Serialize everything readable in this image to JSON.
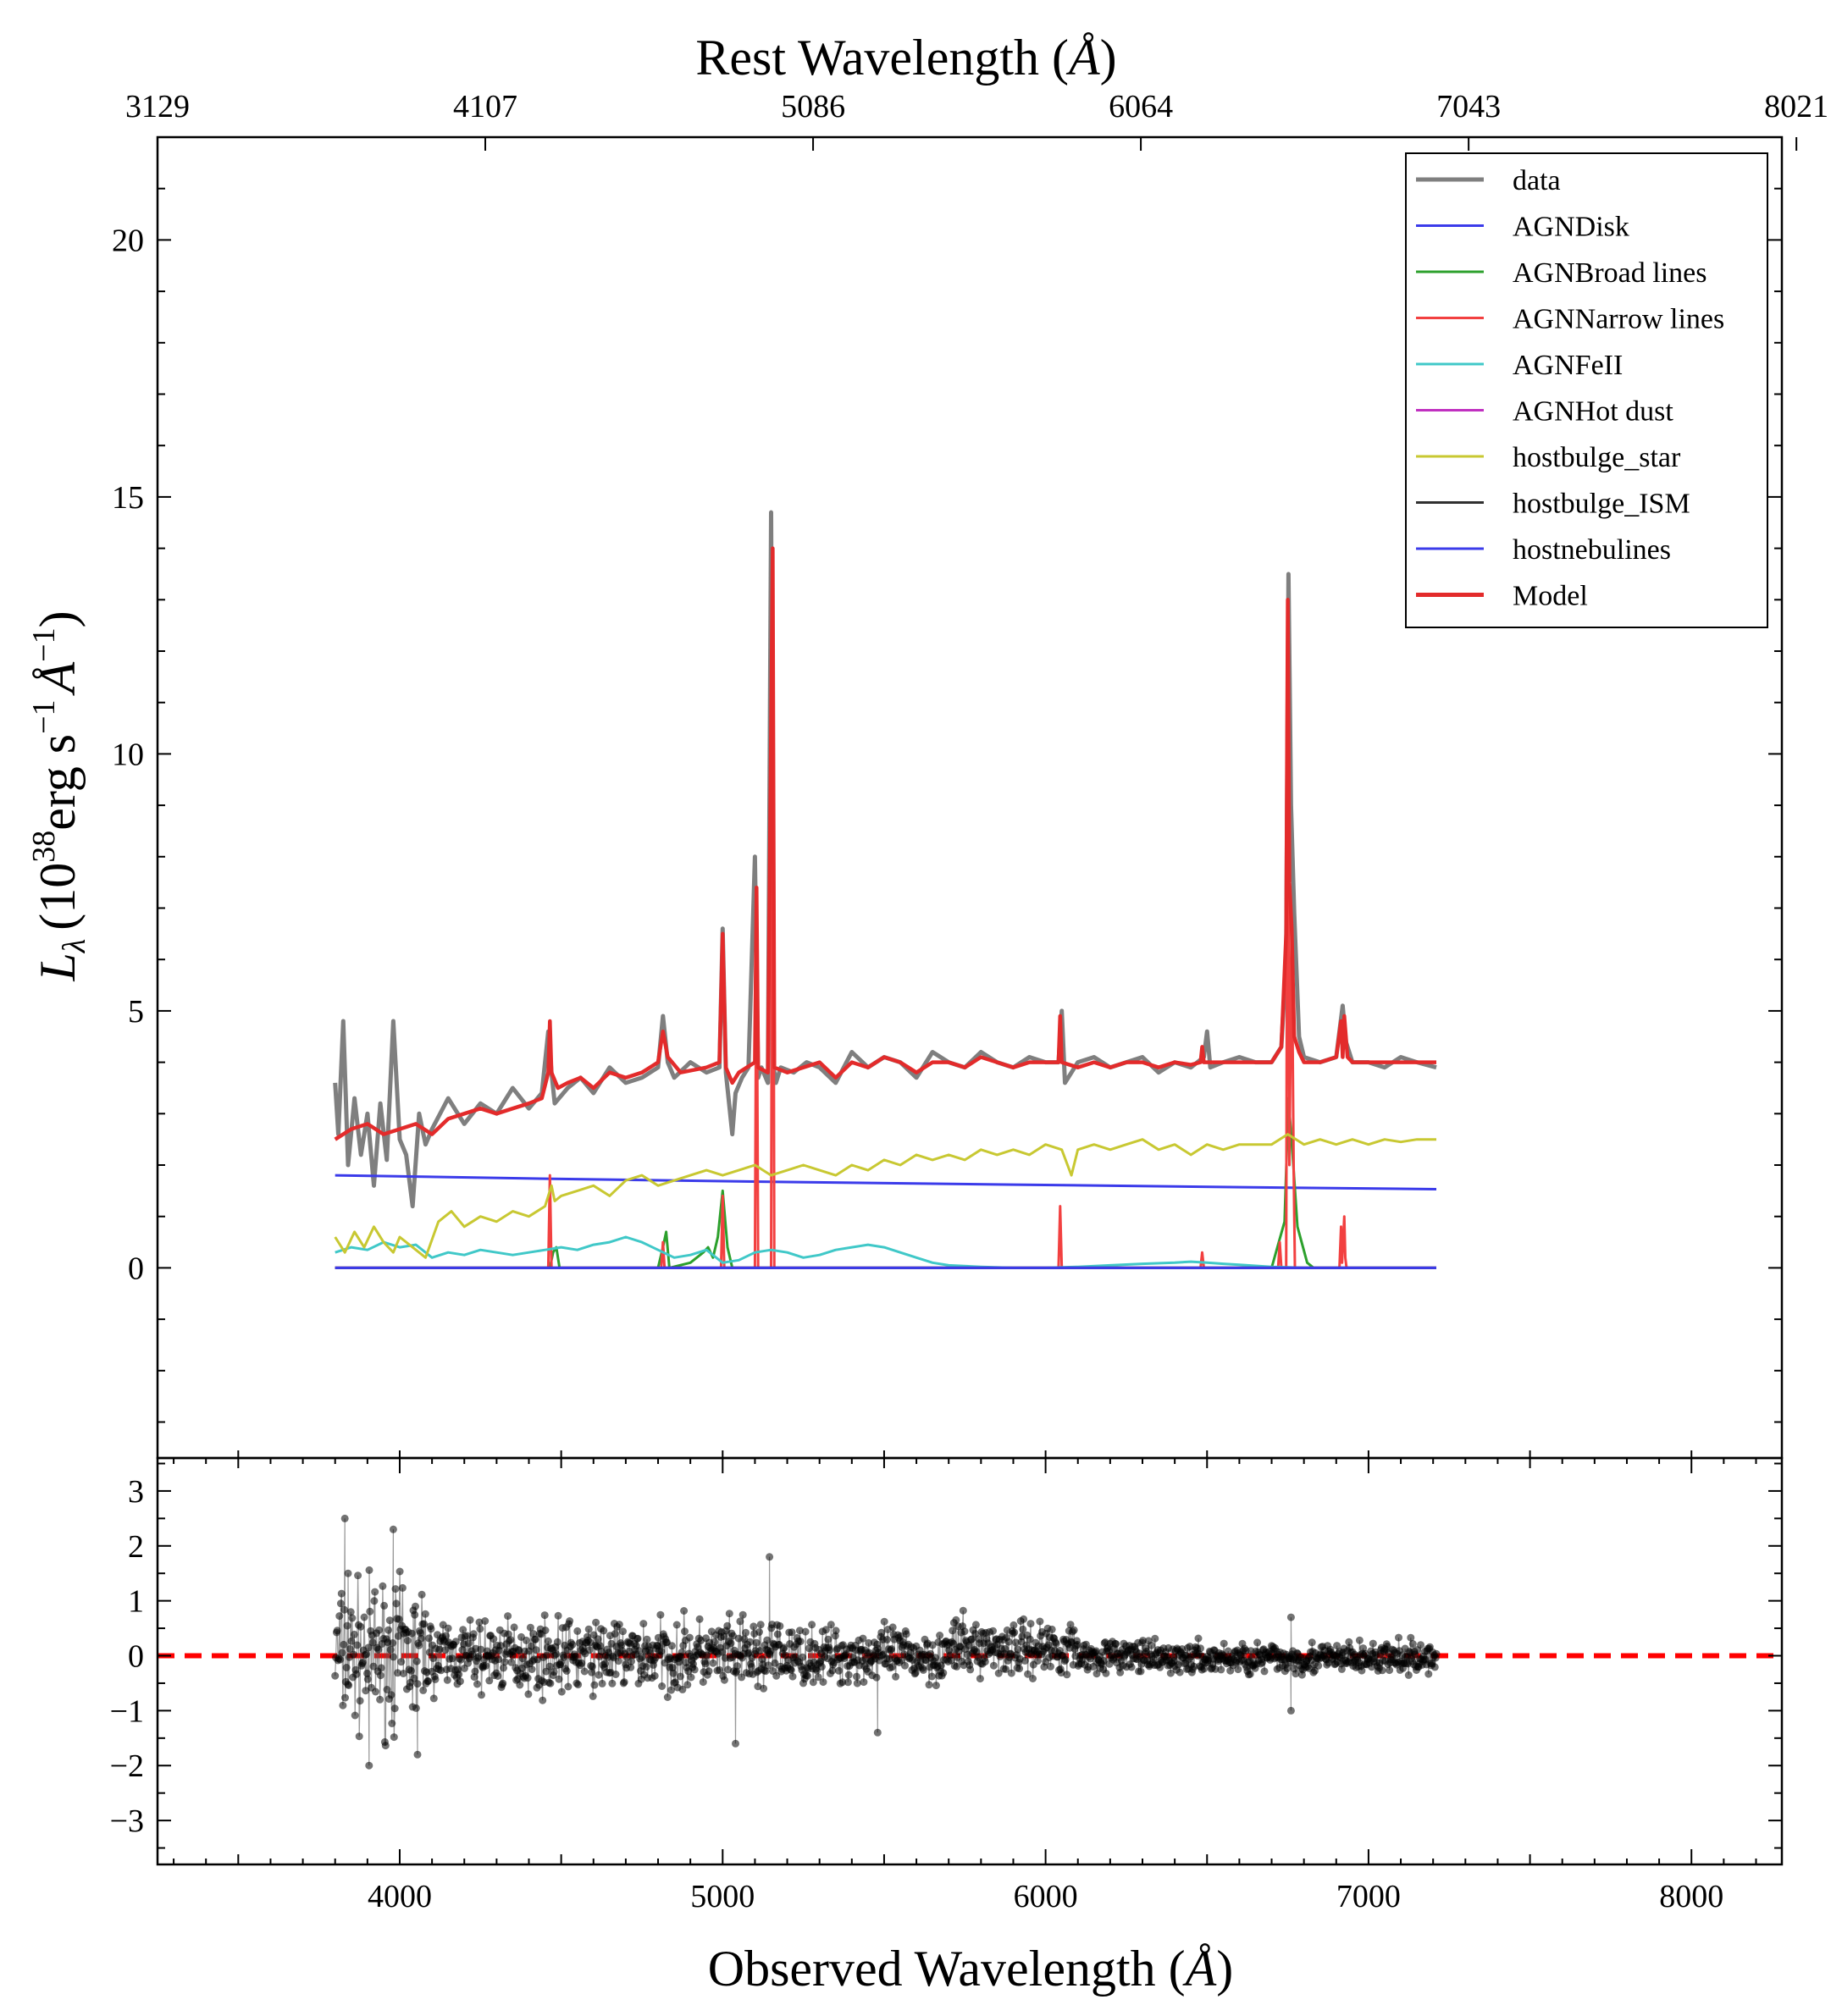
{
  "chart_data": [
    {
      "panel": "spectrum",
      "type": "line",
      "xlabel": "Observed Wavelength",
      "xlabel_unit": "Å",
      "top_xlabel": "Rest Wavelength",
      "top_xlabel_unit": "Å",
      "ylabel_symbol": "L",
      "ylabel_subscript": "λ",
      "ylabel_paren_open": "(10",
      "ylabel_exp1": "38",
      "ylabel_mid": "erg s",
      "ylabel_exp2": "−1",
      "ylabel_angstrom": "Å",
      "ylabel_exp3": "−1",
      "ylabel_paren_close": ")",
      "xlim": [
        3250,
        8280
      ],
      "ylim": [
        -3.7,
        22
      ],
      "yticks": [
        "0",
        "5",
        "10",
        "15",
        "20"
      ],
      "top_xticks": [
        {
          "obs": 3250,
          "label": "3129"
        },
        {
          "obs": 4265,
          "label": "4107"
        },
        {
          "obs": 5280,
          "label": "5086"
        },
        {
          "obs": 6295,
          "label": "6064"
        },
        {
          "obs": 7310,
          "label": "7043"
        },
        {
          "obs": 8325,
          "label": "8021"
        }
      ],
      "legend_position": "top-right",
      "series": [
        {
          "name": "data",
          "color": "#7f7f7f",
          "x": [
            3800,
            3810,
            3825,
            3840,
            3860,
            3880,
            3900,
            3920,
            3940,
            3960,
            3980,
            4000,
            4020,
            4040,
            4060,
            4080,
            4100,
            4150,
            4200,
            4250,
            4300,
            4350,
            4400,
            4440,
            4460,
            4470,
            4480,
            4520,
            4560,
            4600,
            4650,
            4700,
            4750,
            4800,
            4815,
            4830,
            4850,
            4900,
            4950,
            4990,
            5000,
            5010,
            5030,
            5040,
            5060,
            5080,
            5100,
            5110,
            5120,
            5140,
            5150,
            5158,
            5165,
            5180,
            5220,
            5260,
            5300,
            5350,
            5400,
            5450,
            5500,
            5550,
            5600,
            5650,
            5700,
            5750,
            5800,
            5850,
            5900,
            5950,
            6000,
            6040,
            6050,
            6060,
            6100,
            6150,
            6200,
            6250,
            6300,
            6350,
            6400,
            6450,
            6490,
            6500,
            6510,
            6550,
            6600,
            6650,
            6700,
            6730,
            6745,
            6752,
            6760,
            6770,
            6785,
            6800,
            6850,
            6900,
            6920,
            6930,
            6950,
            7000,
            7050,
            7100,
            7150,
            7210
          ],
          "y": [
            3.6,
            2.6,
            4.8,
            2.0,
            3.3,
            2.2,
            3.0,
            1.6,
            3.2,
            2.1,
            4.8,
            2.5,
            2.2,
            1.2,
            3.0,
            2.4,
            2.7,
            3.3,
            2.8,
            3.2,
            3.0,
            3.5,
            3.1,
            3.4,
            4.6,
            3.8,
            3.2,
            3.5,
            3.7,
            3.4,
            3.9,
            3.6,
            3.7,
            3.9,
            4.9,
            4.0,
            3.7,
            4.0,
            3.8,
            3.9,
            6.6,
            3.8,
            2.6,
            3.4,
            3.7,
            3.9,
            8.0,
            3.7,
            3.9,
            3.6,
            14.7,
            3.9,
            3.6,
            3.9,
            3.8,
            4.0,
            3.9,
            3.6,
            4.2,
            3.9,
            4.1,
            4.0,
            3.7,
            4.2,
            4.0,
            3.9,
            4.2,
            4.0,
            3.9,
            4.1,
            4.0,
            4.0,
            5.0,
            3.6,
            4.0,
            4.1,
            3.9,
            4.0,
            4.1,
            3.8,
            4.0,
            3.9,
            4.1,
            4.6,
            3.9,
            4.0,
            4.1,
            4.0,
            4.0,
            4.3,
            6.0,
            13.5,
            9.0,
            6.9,
            4.5,
            4.1,
            4.0,
            4.1,
            5.1,
            4.4,
            4.0,
            4.0,
            3.9,
            4.1,
            4.0,
            3.9
          ]
        },
        {
          "name": "AGNDisk",
          "color": "#3b3bea",
          "x": [
            3800,
            4500,
            5200,
            5900,
            6600,
            7210
          ],
          "y": [
            1.8,
            1.73,
            1.67,
            1.62,
            1.57,
            1.53
          ]
        },
        {
          "name": "AGNBroad lines",
          "color": "#2ca02c",
          "x": [
            3800,
            4465,
            4475,
            4485,
            4495,
            4800,
            4815,
            4825,
            4835,
            4900,
            4940,
            4955,
            4970,
            4985,
            5000,
            5015,
            5030,
            5100,
            6700,
            6740,
            6752,
            6765,
            6780,
            6810,
            6830,
            7210
          ],
          "y": [
            0,
            0,
            0.3,
            0.4,
            0,
            0,
            0.4,
            0.7,
            0,
            0.1,
            0.3,
            0.4,
            0.2,
            0.6,
            1.5,
            0.4,
            0,
            0,
            0,
            0.9,
            3.3,
            2.2,
            0.8,
            0.1,
            0,
            0
          ]
        },
        {
          "name": "AGNNarrow lines",
          "color": "#f24040",
          "x": [
            3800,
            4460,
            4465,
            4470,
            4810,
            4815,
            4820,
            4995,
            5000,
            5005,
            5100,
            5105,
            5110,
            5150,
            5155,
            5160,
            6040,
            6045,
            6050,
            6480,
            6485,
            6490,
            6720,
            6725,
            6730,
            6745,
            6750,
            6755,
            6762,
            6768,
            6772,
            6910,
            6915,
            6918,
            6925,
            6928,
            6932,
            7210
          ],
          "y": [
            0,
            0,
            1.8,
            0,
            0,
            0.5,
            0,
            0,
            1.4,
            0,
            0,
            7.4,
            0,
            0,
            14.0,
            0,
            0,
            1.2,
            0,
            0,
            0.3,
            0,
            0,
            0.5,
            0,
            0,
            13.0,
            2.0,
            6.7,
            2.0,
            0,
            0,
            0.8,
            0.1,
            1.0,
            0.2,
            0,
            0
          ]
        },
        {
          "name": "AGNFeII",
          "color": "#40c8c8",
          "x": [
            3800,
            3850,
            3900,
            3950,
            4000,
            4050,
            4100,
            4150,
            4200,
            4250,
            4300,
            4350,
            4400,
            4450,
            4500,
            4550,
            4600,
            4650,
            4700,
            4750,
            4800,
            4850,
            4900,
            4950,
            5000,
            5050,
            5100,
            5150,
            5200,
            5250,
            5300,
            5350,
            5400,
            5450,
            5500,
            5550,
            5600,
            5650,
            5700,
            5800,
            5900,
            6000,
            6100,
            6200,
            6300,
            6400,
            6450,
            6500,
            6550,
            6600,
            6700,
            6800,
            7000,
            7210
          ],
          "y": [
            0.3,
            0.4,
            0.35,
            0.5,
            0.4,
            0.45,
            0.2,
            0.3,
            0.25,
            0.35,
            0.3,
            0.25,
            0.3,
            0.35,
            0.4,
            0.35,
            0.45,
            0.5,
            0.6,
            0.5,
            0.35,
            0.2,
            0.25,
            0.35,
            0.1,
            0.15,
            0.3,
            0.35,
            0.3,
            0.2,
            0.25,
            0.35,
            0.4,
            0.45,
            0.4,
            0.3,
            0.2,
            0.1,
            0.05,
            0.02,
            0.0,
            0.0,
            0.02,
            0.05,
            0.08,
            0.1,
            0.12,
            0.1,
            0.08,
            0.06,
            0.02,
            0.0,
            0.0,
            0.0
          ]
        },
        {
          "name": "AGNHot dust",
          "color": "#c030c0",
          "x": [
            3800,
            7210
          ],
          "y": [
            0,
            0
          ]
        },
        {
          "name": "hostbulge_star",
          "color": "#c8c832",
          "x": [
            3800,
            3830,
            3860,
            3890,
            3920,
            3950,
            3980,
            4000,
            4040,
            4080,
            4120,
            4160,
            4200,
            4250,
            4300,
            4350,
            4400,
            4450,
            4470,
            4480,
            4500,
            4550,
            4600,
            4650,
            4700,
            4750,
            4800,
            4850,
            4900,
            4950,
            5000,
            5050,
            5100,
            5150,
            5200,
            5250,
            5300,
            5350,
            5400,
            5450,
            5500,
            5550,
            5600,
            5650,
            5700,
            5750,
            5800,
            5850,
            5900,
            5950,
            6000,
            6050,
            6080,
            6100,
            6150,
            6200,
            6250,
            6300,
            6350,
            6400,
            6450,
            6500,
            6550,
            6600,
            6650,
            6700,
            6750,
            6800,
            6850,
            6900,
            6950,
            7000,
            7050,
            7100,
            7150,
            7210
          ],
          "y": [
            0.6,
            0.3,
            0.7,
            0.4,
            0.8,
            0.5,
            0.3,
            0.6,
            0.4,
            0.2,
            0.9,
            1.1,
            0.8,
            1.0,
            0.9,
            1.1,
            1.0,
            1.2,
            1.6,
            1.3,
            1.4,
            1.5,
            1.6,
            1.4,
            1.7,
            1.8,
            1.6,
            1.7,
            1.8,
            1.9,
            1.8,
            1.9,
            2.0,
            1.8,
            1.9,
            2.0,
            1.9,
            1.8,
            2.0,
            1.9,
            2.1,
            2.0,
            2.2,
            2.1,
            2.2,
            2.1,
            2.3,
            2.2,
            2.3,
            2.2,
            2.4,
            2.3,
            1.8,
            2.3,
            2.4,
            2.3,
            2.4,
            2.5,
            2.3,
            2.4,
            2.2,
            2.4,
            2.3,
            2.4,
            2.4,
            2.4,
            2.6,
            2.4,
            2.5,
            2.4,
            2.5,
            2.4,
            2.5,
            2.45,
            2.5,
            2.5
          ]
        },
        {
          "name": "hostbulge_ISM",
          "color": "#303030",
          "x": [
            3800,
            7210
          ],
          "y": [
            0,
            0
          ]
        },
        {
          "name": "hostnebulines",
          "color": "#3b3bea",
          "x": [
            3800,
            7210
          ],
          "y": [
            0,
            0
          ]
        },
        {
          "name": "Model",
          "color": "#e32b2b",
          "x": [
            3800,
            3850,
            3900,
            3950,
            4000,
            4050,
            4100,
            4150,
            4200,
            4250,
            4300,
            4350,
            4400,
            4440,
            4460,
            4465,
            4470,
            4490,
            4520,
            4560,
            4600,
            4650,
            4700,
            4750,
            4800,
            4815,
            4830,
            4870,
            4950,
            4990,
            5000,
            5010,
            5030,
            5050,
            5100,
            5105,
            5110,
            5140,
            5155,
            5160,
            5200,
            5250,
            5300,
            5350,
            5400,
            5450,
            5500,
            5550,
            5600,
            5650,
            5700,
            5750,
            5800,
            5850,
            5900,
            5950,
            6000,
            6040,
            6045,
            6050,
            6100,
            6150,
            6200,
            6250,
            6300,
            6350,
            6400,
            6450,
            6480,
            6485,
            6490,
            6550,
            6600,
            6650,
            6700,
            6730,
            6745,
            6750,
            6755,
            6762,
            6770,
            6785,
            6800,
            6850,
            6900,
            6915,
            6920,
            6925,
            6935,
            6950,
            7000,
            7050,
            7100,
            7150,
            7210
          ],
          "y": [
            2.5,
            2.7,
            2.8,
            2.6,
            2.7,
            2.8,
            2.6,
            2.9,
            3.0,
            3.1,
            3.0,
            3.1,
            3.2,
            3.3,
            3.8,
            4.8,
            3.8,
            3.5,
            3.6,
            3.7,
            3.5,
            3.8,
            3.7,
            3.8,
            4.0,
            4.6,
            4.1,
            3.8,
            3.9,
            4.0,
            6.5,
            3.9,
            3.6,
            3.8,
            4.0,
            7.4,
            3.9,
            3.8,
            14.0,
            3.9,
            3.8,
            3.9,
            4.0,
            3.7,
            4.0,
            3.9,
            4.1,
            4.0,
            3.8,
            4.0,
            4.0,
            3.9,
            4.1,
            4.0,
            3.9,
            4.0,
            4.0,
            4.0,
            4.9,
            4.0,
            3.9,
            4.0,
            3.9,
            4.0,
            4.0,
            3.9,
            4.0,
            3.95,
            4.0,
            4.3,
            4.0,
            4.0,
            4.0,
            4.0,
            4.0,
            4.3,
            6.5,
            13.0,
            7.5,
            6.6,
            4.5,
            4.2,
            4.0,
            4.0,
            4.1,
            4.8,
            4.1,
            4.9,
            4.1,
            4.0,
            4.0,
            4.0,
            4.0,
            4.0,
            4.0
          ]
        }
      ]
    },
    {
      "panel": "residuals",
      "type": "scatter",
      "xlabel": "Observed Wavelength",
      "xlabel_unit": "Å",
      "xlim": [
        3250,
        8280
      ],
      "ylim": [
        -3.8,
        3.6
      ],
      "xticks": [
        "4000",
        "5000",
        "6000",
        "7000",
        "8000"
      ],
      "yticks": [
        "3",
        "2",
        "1",
        "0",
        "−1",
        "−2",
        "−3"
      ],
      "zero_line_color": "#ff0000",
      "point_color": "#000000",
      "x_range": [
        3800,
        7210
      ],
      "notable_points": [
        {
          "x": 3830,
          "y": 2.5
        },
        {
          "x": 3840,
          "y": 1.5
        },
        {
          "x": 3980,
          "y": 2.3
        },
        {
          "x": 3905,
          "y": -2.0
        },
        {
          "x": 4055,
          "y": -1.8
        },
        {
          "x": 5040,
          "y": -1.6
        },
        {
          "x": 5145,
          "y": 1.8
        },
        {
          "x": 5480,
          "y": -1.4
        },
        {
          "x": 6760,
          "y": -1.0
        },
        {
          "x": 6760,
          "y": 0.7
        }
      ]
    }
  ]
}
